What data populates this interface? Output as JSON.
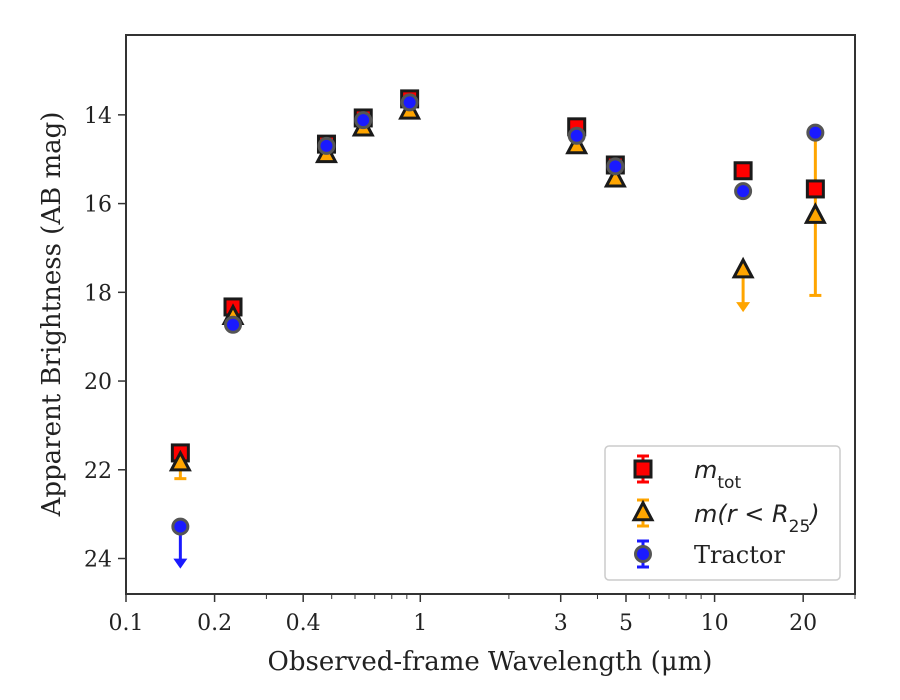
{
  "chart_data": {
    "type": "scatter",
    "xlabel": "Observed-frame Wavelength (μm)",
    "ylabel": "Apparent Brightness (AB mag)",
    "xscale": "log",
    "xlim": [
      0.1,
      30
    ],
    "ylim": [
      24.8,
      12.2
    ],
    "y_inverted": true,
    "x_ticks": [
      {
        "value": 0.1,
        "label": "0.1"
      },
      {
        "value": 0.2,
        "label": "0.2"
      },
      {
        "value": 0.4,
        "label": "0.4"
      },
      {
        "value": 1,
        "label": "1"
      },
      {
        "value": 3,
        "label": "3"
      },
      {
        "value": 5,
        "label": "5"
      },
      {
        "value": 10,
        "label": "10"
      },
      {
        "value": 20,
        "label": "20"
      }
    ],
    "y_ticks": [
      {
        "value": 14,
        "label": "14"
      },
      {
        "value": 16,
        "label": "16"
      },
      {
        "value": 18,
        "label": "18"
      },
      {
        "value": 20,
        "label": "20"
      },
      {
        "value": 22,
        "label": "22"
      },
      {
        "value": 24,
        "label": "24"
      }
    ],
    "legend": {
      "placement": "lower-right",
      "entries": [
        {
          "series": "m_tot",
          "label_base": "m",
          "label_sub": "tot"
        },
        {
          "series": "m_r25",
          "label_base": "m(r < R",
          "label_sub": "25",
          "label_tail": ")"
        },
        {
          "series": "tractor",
          "label_base": "Tractor"
        }
      ]
    },
    "series": [
      {
        "key": "m_tot",
        "marker": "square",
        "color": "#ff0000",
        "edge": "#1a1a1a",
        "points": [
          {
            "x": 0.153,
            "y": 21.62,
            "err": 0.1
          },
          {
            "x": 0.231,
            "y": 18.33
          },
          {
            "x": 0.48,
            "y": 14.66
          },
          {
            "x": 0.64,
            "y": 14.07
          },
          {
            "x": 0.92,
            "y": 13.64
          },
          {
            "x": 3.4,
            "y": 14.27
          },
          {
            "x": 4.6,
            "y": 15.13
          },
          {
            "x": 12.5,
            "y": 15.26
          },
          {
            "x": 22.0,
            "y": 15.67
          }
        ]
      },
      {
        "key": "m_r25",
        "marker": "triangle",
        "color": "#ffa500",
        "edge": "#1a1a1a",
        "points": [
          {
            "x": 0.153,
            "y": 21.85,
            "err_lo": 0.35,
            "err_hi": 0.1
          },
          {
            "x": 0.231,
            "y": 18.55
          },
          {
            "x": 0.48,
            "y": 14.9
          },
          {
            "x": 0.64,
            "y": 14.3
          },
          {
            "x": 0.92,
            "y": 13.92
          },
          {
            "x": 3.4,
            "y": 14.7
          },
          {
            "x": 4.6,
            "y": 15.45
          },
          {
            "x": 12.5,
            "y": 17.5,
            "upper_limit": true
          },
          {
            "x": 22.0,
            "y": 16.27,
            "err_lo": 1.8,
            "err_hi": 1.85
          }
        ]
      },
      {
        "key": "tractor",
        "marker": "circle",
        "color": "#1a1aff",
        "edge": "#555555",
        "points": [
          {
            "x": 0.153,
            "y": 23.28,
            "upper_limit": true
          },
          {
            "x": 0.231,
            "y": 18.73
          },
          {
            "x": 0.48,
            "y": 14.7
          },
          {
            "x": 0.64,
            "y": 14.12
          },
          {
            "x": 0.92,
            "y": 13.72
          },
          {
            "x": 3.4,
            "y": 14.47
          },
          {
            "x": 4.6,
            "y": 15.16
          },
          {
            "x": 12.5,
            "y": 15.72
          },
          {
            "x": 22.0,
            "y": 14.4
          }
        ]
      }
    ]
  }
}
